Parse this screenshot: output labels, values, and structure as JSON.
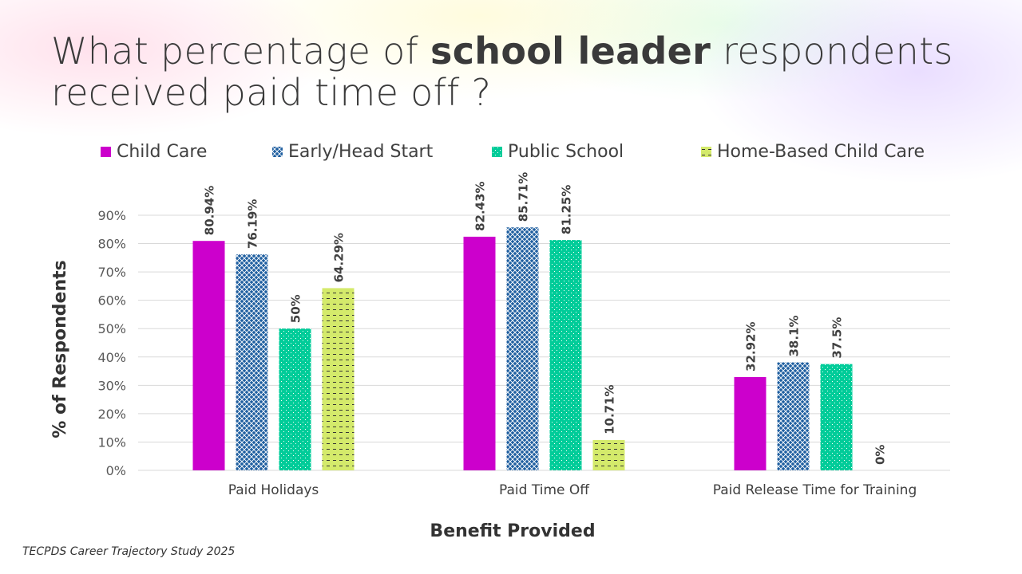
{
  "title": {
    "pre": "What percentage of ",
    "bold": "school leader",
    "post": " respondents received paid time off ?"
  },
  "source": "TECPDS Career Trajectory Study 2025",
  "chart_data": {
    "type": "bar",
    "title": "What percentage of school leader respondents received paid time off ?",
    "xlabel": "Benefit Provided",
    "ylabel": "% of Respondents",
    "ylim": [
      0,
      90
    ],
    "yticks": [
      "0%",
      "10%",
      "20%",
      "30%",
      "40%",
      "50%",
      "60%",
      "70%",
      "80%",
      "90%"
    ],
    "grid": true,
    "legend_position": "top",
    "categories": [
      "Paid Holidays",
      "Paid Time Off",
      "Paid Release Time for Training"
    ],
    "series": [
      {
        "name": "Child Care",
        "color": "#cc00cc",
        "pattern": "solid",
        "values": [
          80.94,
          82.43,
          32.92
        ],
        "labels": [
          "80.94%",
          "82.43%",
          "32.92%"
        ]
      },
      {
        "name": "Early/Head Start",
        "color": "#1f5fa0",
        "pattern": "diamond-grid",
        "values": [
          76.19,
          85.71,
          38.1
        ],
        "labels": [
          "76.19%",
          "85.71%",
          "38.1%"
        ]
      },
      {
        "name": "Public School",
        "color": "#00cc99",
        "pattern": "dots",
        "values": [
          50,
          81.25,
          37.5
        ],
        "labels": [
          "50%",
          "81.25%",
          "37.5%"
        ]
      },
      {
        "name": "Home-Based Child Care",
        "color": "#d4ea6b",
        "pattern": "dashes",
        "values": [
          64.29,
          10.71,
          0
        ],
        "labels": [
          "64.29%",
          "10.71%",
          "0%"
        ]
      }
    ]
  }
}
